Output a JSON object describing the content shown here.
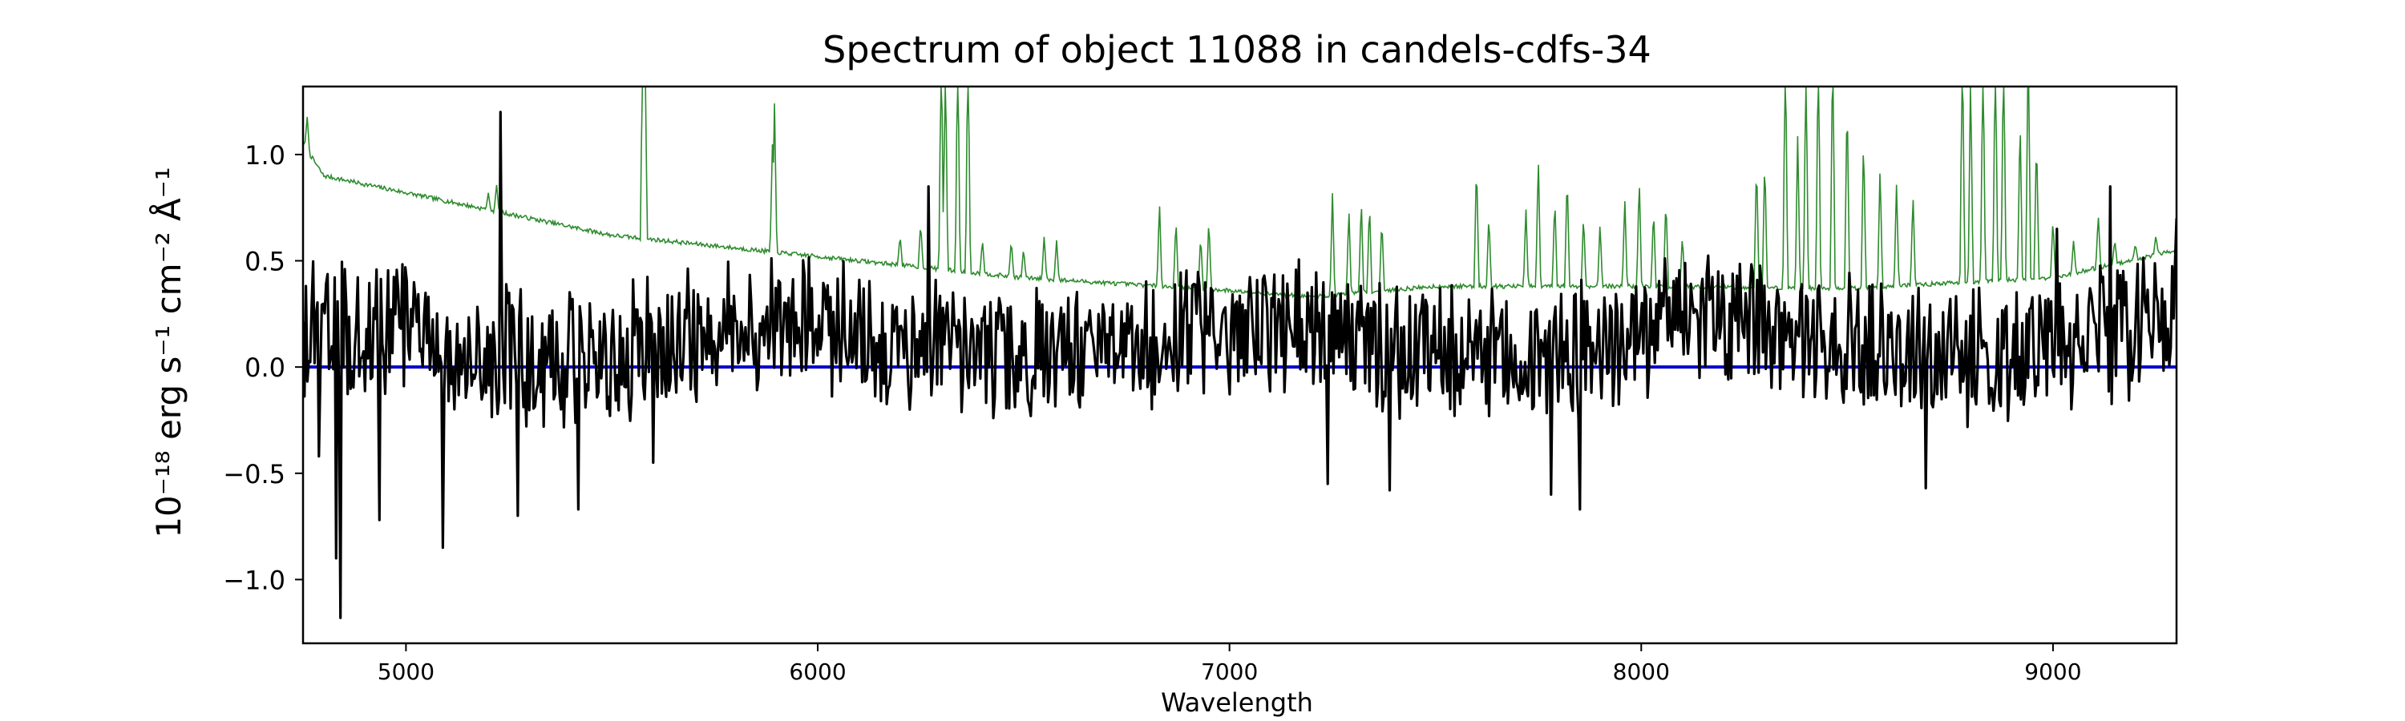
{
  "chart_data": {
    "type": "line",
    "title": "Spectrum of object 11088 in candels-cdfs-34",
    "xlabel": "Wavelength",
    "ylabel": "10⁻¹⁸ erg s⁻¹ cm⁻² Å⁻¹",
    "xlim": [
      4750,
      9300
    ],
    "ylim": [
      -1.3,
      1.32
    ],
    "x_ticks": [
      5000,
      6000,
      7000,
      8000,
      9000
    ],
    "y_ticks": [
      -1.0,
      -0.5,
      0.0,
      0.5,
      1.0
    ],
    "x_tick_labels": [
      "5000",
      "6000",
      "7000",
      "8000",
      "9000"
    ],
    "y_tick_labels": [
      "−1.0",
      "−0.5",
      "0.0",
      "0.5",
      "1.0"
    ],
    "grid": false,
    "colors": {
      "flux": "#000000",
      "noise": "#2e8b2e",
      "model": "#0000cc"
    },
    "series": [
      {
        "key": "noise",
        "continuum": [
          [
            4750,
            1.05
          ],
          [
            4800,
            0.9
          ],
          [
            5000,
            0.82
          ],
          [
            5500,
            0.62
          ],
          [
            6000,
            0.52
          ],
          [
            6500,
            0.42
          ],
          [
            7000,
            0.36
          ],
          [
            7200,
            0.33
          ],
          [
            7500,
            0.38
          ],
          [
            8000,
            0.38
          ],
          [
            8500,
            0.37
          ],
          [
            9000,
            0.42
          ],
          [
            9300,
            0.55
          ]
        ],
        "peaks": [
          [
            4760,
            1.18
          ],
          [
            5200,
            0.82
          ],
          [
            5220,
            0.86
          ],
          [
            5575,
            1.6
          ],
          [
            5580,
            1.6
          ],
          [
            5890,
            1.05
          ],
          [
            5895,
            1.25
          ],
          [
            6200,
            0.62
          ],
          [
            6250,
            0.68
          ],
          [
            6300,
            1.6
          ],
          [
            6310,
            1.5
          ],
          [
            6340,
            1.6
          ],
          [
            6365,
            1.6
          ],
          [
            6400,
            0.6
          ],
          [
            6470,
            0.6
          ],
          [
            6500,
            0.56
          ],
          [
            6550,
            0.62
          ],
          [
            6580,
            0.6
          ],
          [
            6830,
            0.78
          ],
          [
            6870,
            0.7
          ],
          [
            6930,
            0.62
          ],
          [
            6950,
            0.7
          ],
          [
            7250,
            0.82
          ],
          [
            7290,
            0.75
          ],
          [
            7320,
            0.8
          ],
          [
            7340,
            0.78
          ],
          [
            7370,
            0.7
          ],
          [
            7600,
            0.98
          ],
          [
            7630,
            0.72
          ],
          [
            7720,
            0.75
          ],
          [
            7750,
            1.0
          ],
          [
            7790,
            0.8
          ],
          [
            7820,
            0.92
          ],
          [
            7860,
            0.72
          ],
          [
            7900,
            0.68
          ],
          [
            7960,
            0.8
          ],
          [
            7995,
            0.9
          ],
          [
            8030,
            0.75
          ],
          [
            8060,
            0.8
          ],
          [
            8100,
            0.62
          ],
          [
            8280,
            0.98
          ],
          [
            8300,
            1.0
          ],
          [
            8350,
            1.6
          ],
          [
            8380,
            1.1
          ],
          [
            8400,
            1.5
          ],
          [
            8430,
            1.6
          ],
          [
            8465,
            1.6
          ],
          [
            8500,
            1.3
          ],
          [
            8540,
            1.1
          ],
          [
            8580,
            0.95
          ],
          [
            8620,
            0.86
          ],
          [
            8660,
            0.82
          ],
          [
            8780,
            1.6
          ],
          [
            8800,
            1.4
          ],
          [
            8830,
            1.55
          ],
          [
            8860,
            1.6
          ],
          [
            8880,
            1.6
          ],
          [
            8920,
            1.2
          ],
          [
            8940,
            1.6
          ],
          [
            8960,
            1.1
          ],
          [
            9000,
            0.7
          ],
          [
            9050,
            0.6
          ],
          [
            9110,
            0.72
          ],
          [
            9150,
            0.6
          ],
          [
            9200,
            0.58
          ],
          [
            9250,
            0.62
          ]
        ]
      },
      {
        "key": "flux",
        "n": 1300,
        "seed": 11088,
        "amplitude": 0.28,
        "spikes": [
          [
            4840,
            -1.18
          ],
          [
            4830,
            -0.9
          ],
          [
            4790,
            -0.42
          ],
          [
            4935,
            -0.72
          ],
          [
            5090,
            -0.85
          ],
          [
            5230,
            1.2
          ],
          [
            5270,
            -0.7
          ],
          [
            5420,
            -0.67
          ],
          [
            5600,
            -0.45
          ],
          [
            6270,
            0.85
          ],
          [
            7240,
            -0.55
          ],
          [
            7390,
            -0.58
          ],
          [
            7780,
            -0.6
          ],
          [
            7850,
            -0.67
          ],
          [
            8690,
            -0.57
          ],
          [
            9140,
            0.85
          ],
          [
            9300,
            0.7
          ],
          [
            9010,
            0.65
          ]
        ]
      },
      {
        "key": "model",
        "value": 0.0
      }
    ]
  }
}
